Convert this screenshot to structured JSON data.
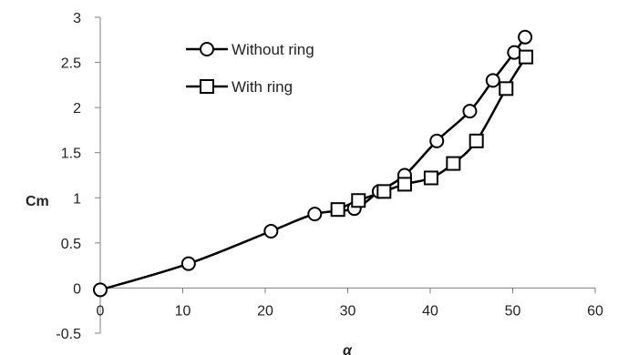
{
  "chart_data": {
    "type": "line",
    "title": "",
    "xlabel": "α",
    "ylabel": "Cm",
    "xlim": [
      0,
      60
    ],
    "ylim": [
      -0.5,
      3
    ],
    "xticks": [
      "0",
      "10",
      "20",
      "30",
      "40",
      "50",
      "60"
    ],
    "yticks": [
      "-0.5",
      "0",
      "0.5",
      "1",
      "1.5",
      "2",
      "2.5",
      "3"
    ],
    "grid": false,
    "legend_position": "top-left",
    "series": [
      {
        "name": "Without ring",
        "marker": "circle",
        "color": "#000000",
        "x": [
          0,
          10.7,
          20.7,
          26,
          30.8,
          33.8,
          36.9,
          40.8,
          44.8,
          47.6,
          50.2,
          51.5
        ],
        "y": [
          -0.02,
          0.27,
          0.63,
          0.82,
          0.88,
          1.07,
          1.25,
          1.63,
          1.96,
          2.3,
          2.61,
          2.78
        ]
      },
      {
        "name": "With ring",
        "marker": "square",
        "color": "#000000",
        "x": [
          28.8,
          31.3,
          34.4,
          36.9,
          40.1,
          42.8,
          45.6,
          49.2,
          51.6
        ],
        "y": [
          0.87,
          0.97,
          1.07,
          1.15,
          1.22,
          1.38,
          1.63,
          2.21,
          2.56
        ]
      }
    ]
  }
}
